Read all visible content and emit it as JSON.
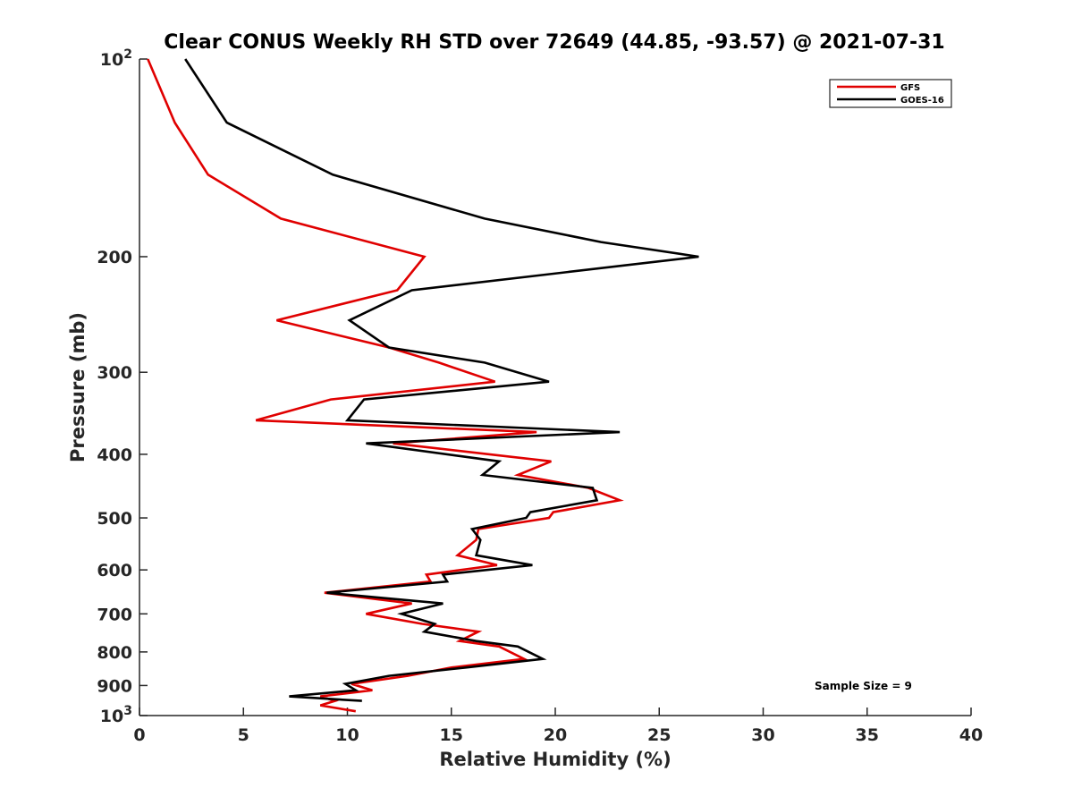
{
  "chart_data": {
    "type": "line",
    "title": "Clear CONUS Weekly RH STD over 72649 (44.85, -93.57) @ 2021-07-31",
    "xlabel": "Relative Humidity (%)",
    "ylabel": "Pressure (mb)",
    "xlim": [
      0,
      40
    ],
    "ylim": [
      100,
      1000
    ],
    "y_scale": "log",
    "y_reversed": true,
    "x_ticks": [
      "0",
      "5",
      "10",
      "15",
      "20",
      "25",
      "30",
      "35",
      "40"
    ],
    "y_ticks": [
      {
        "value": 100,
        "base": "10",
        "exp": "2"
      },
      {
        "value": 200,
        "label": "200"
      },
      {
        "value": 300,
        "label": "300"
      },
      {
        "value": 400,
        "label": "400"
      },
      {
        "value": 500,
        "label": "500"
      },
      {
        "value": 600,
        "label": "600"
      },
      {
        "value": 700,
        "label": "700"
      },
      {
        "value": 800,
        "label": "800"
      },
      {
        "value": 900,
        "label": "900"
      },
      {
        "value": 1000,
        "base": "10",
        "exp": "3"
      }
    ],
    "grid": false,
    "legend_position": "top-right",
    "annotation": "Sample Size = 9",
    "series": [
      {
        "name": "GFS",
        "color": "#e00000",
        "points": [
          [
            0.4,
            100
          ],
          [
            1.7,
            125
          ],
          [
            3.3,
            150
          ],
          [
            6.8,
            175
          ],
          [
            13.7,
            200
          ],
          [
            12.4,
            225
          ],
          [
            6.6,
            250
          ],
          [
            12.0,
            275
          ],
          [
            14.4,
            290
          ],
          [
            17.1,
            310
          ],
          [
            9.2,
            330
          ],
          [
            5.6,
            355
          ],
          [
            19.1,
            370
          ],
          [
            12.2,
            385
          ],
          [
            19.8,
            410
          ],
          [
            18.2,
            430
          ],
          [
            21.6,
            450
          ],
          [
            23.1,
            470
          ],
          [
            19.9,
            490
          ],
          [
            19.7,
            500
          ],
          [
            16.3,
            520
          ],
          [
            16.2,
            540
          ],
          [
            15.3,
            570
          ],
          [
            17.2,
            590
          ],
          [
            13.8,
            610
          ],
          [
            14.0,
            625
          ],
          [
            8.9,
            650
          ],
          [
            13.1,
            675
          ],
          [
            10.9,
            700
          ],
          [
            13.6,
            725
          ],
          [
            16.3,
            745
          ],
          [
            15.4,
            770
          ],
          [
            17.3,
            785
          ],
          [
            18.5,
            820
          ],
          [
            15.0,
            845
          ],
          [
            12.9,
            870
          ],
          [
            10.2,
            895
          ],
          [
            11.2,
            915
          ],
          [
            8.7,
            935
          ],
          [
            9.4,
            950
          ],
          [
            8.7,
            965
          ],
          [
            10.4,
            985
          ]
        ]
      },
      {
        "name": "GOES-16",
        "color": "#000000",
        "points": [
          [
            2.2,
            100
          ],
          [
            4.2,
            125
          ],
          [
            9.3,
            150
          ],
          [
            16.6,
            175
          ],
          [
            22.2,
            190
          ],
          [
            26.9,
            200
          ],
          [
            13.1,
            225
          ],
          [
            10.1,
            250
          ],
          [
            12.0,
            275
          ],
          [
            16.6,
            290
          ],
          [
            19.7,
            310
          ],
          [
            10.8,
            330
          ],
          [
            10.0,
            355
          ],
          [
            23.1,
            370
          ],
          [
            10.9,
            385
          ],
          [
            17.3,
            410
          ],
          [
            16.5,
            430
          ],
          [
            21.8,
            450
          ],
          [
            22.0,
            470
          ],
          [
            18.8,
            490
          ],
          [
            18.6,
            500
          ],
          [
            16.0,
            520
          ],
          [
            16.4,
            540
          ],
          [
            16.2,
            570
          ],
          [
            18.9,
            590
          ],
          [
            14.6,
            610
          ],
          [
            14.8,
            625
          ],
          [
            9.0,
            650
          ],
          [
            14.6,
            675
          ],
          [
            12.6,
            700
          ],
          [
            14.2,
            725
          ],
          [
            13.7,
            745
          ],
          [
            16.2,
            770
          ],
          [
            18.2,
            785
          ],
          [
            19.4,
            820
          ],
          [
            15.7,
            845
          ],
          [
            12.0,
            870
          ],
          [
            9.9,
            895
          ],
          [
            10.4,
            915
          ],
          [
            7.2,
            935
          ],
          [
            10.7,
            950
          ]
        ]
      }
    ]
  }
}
